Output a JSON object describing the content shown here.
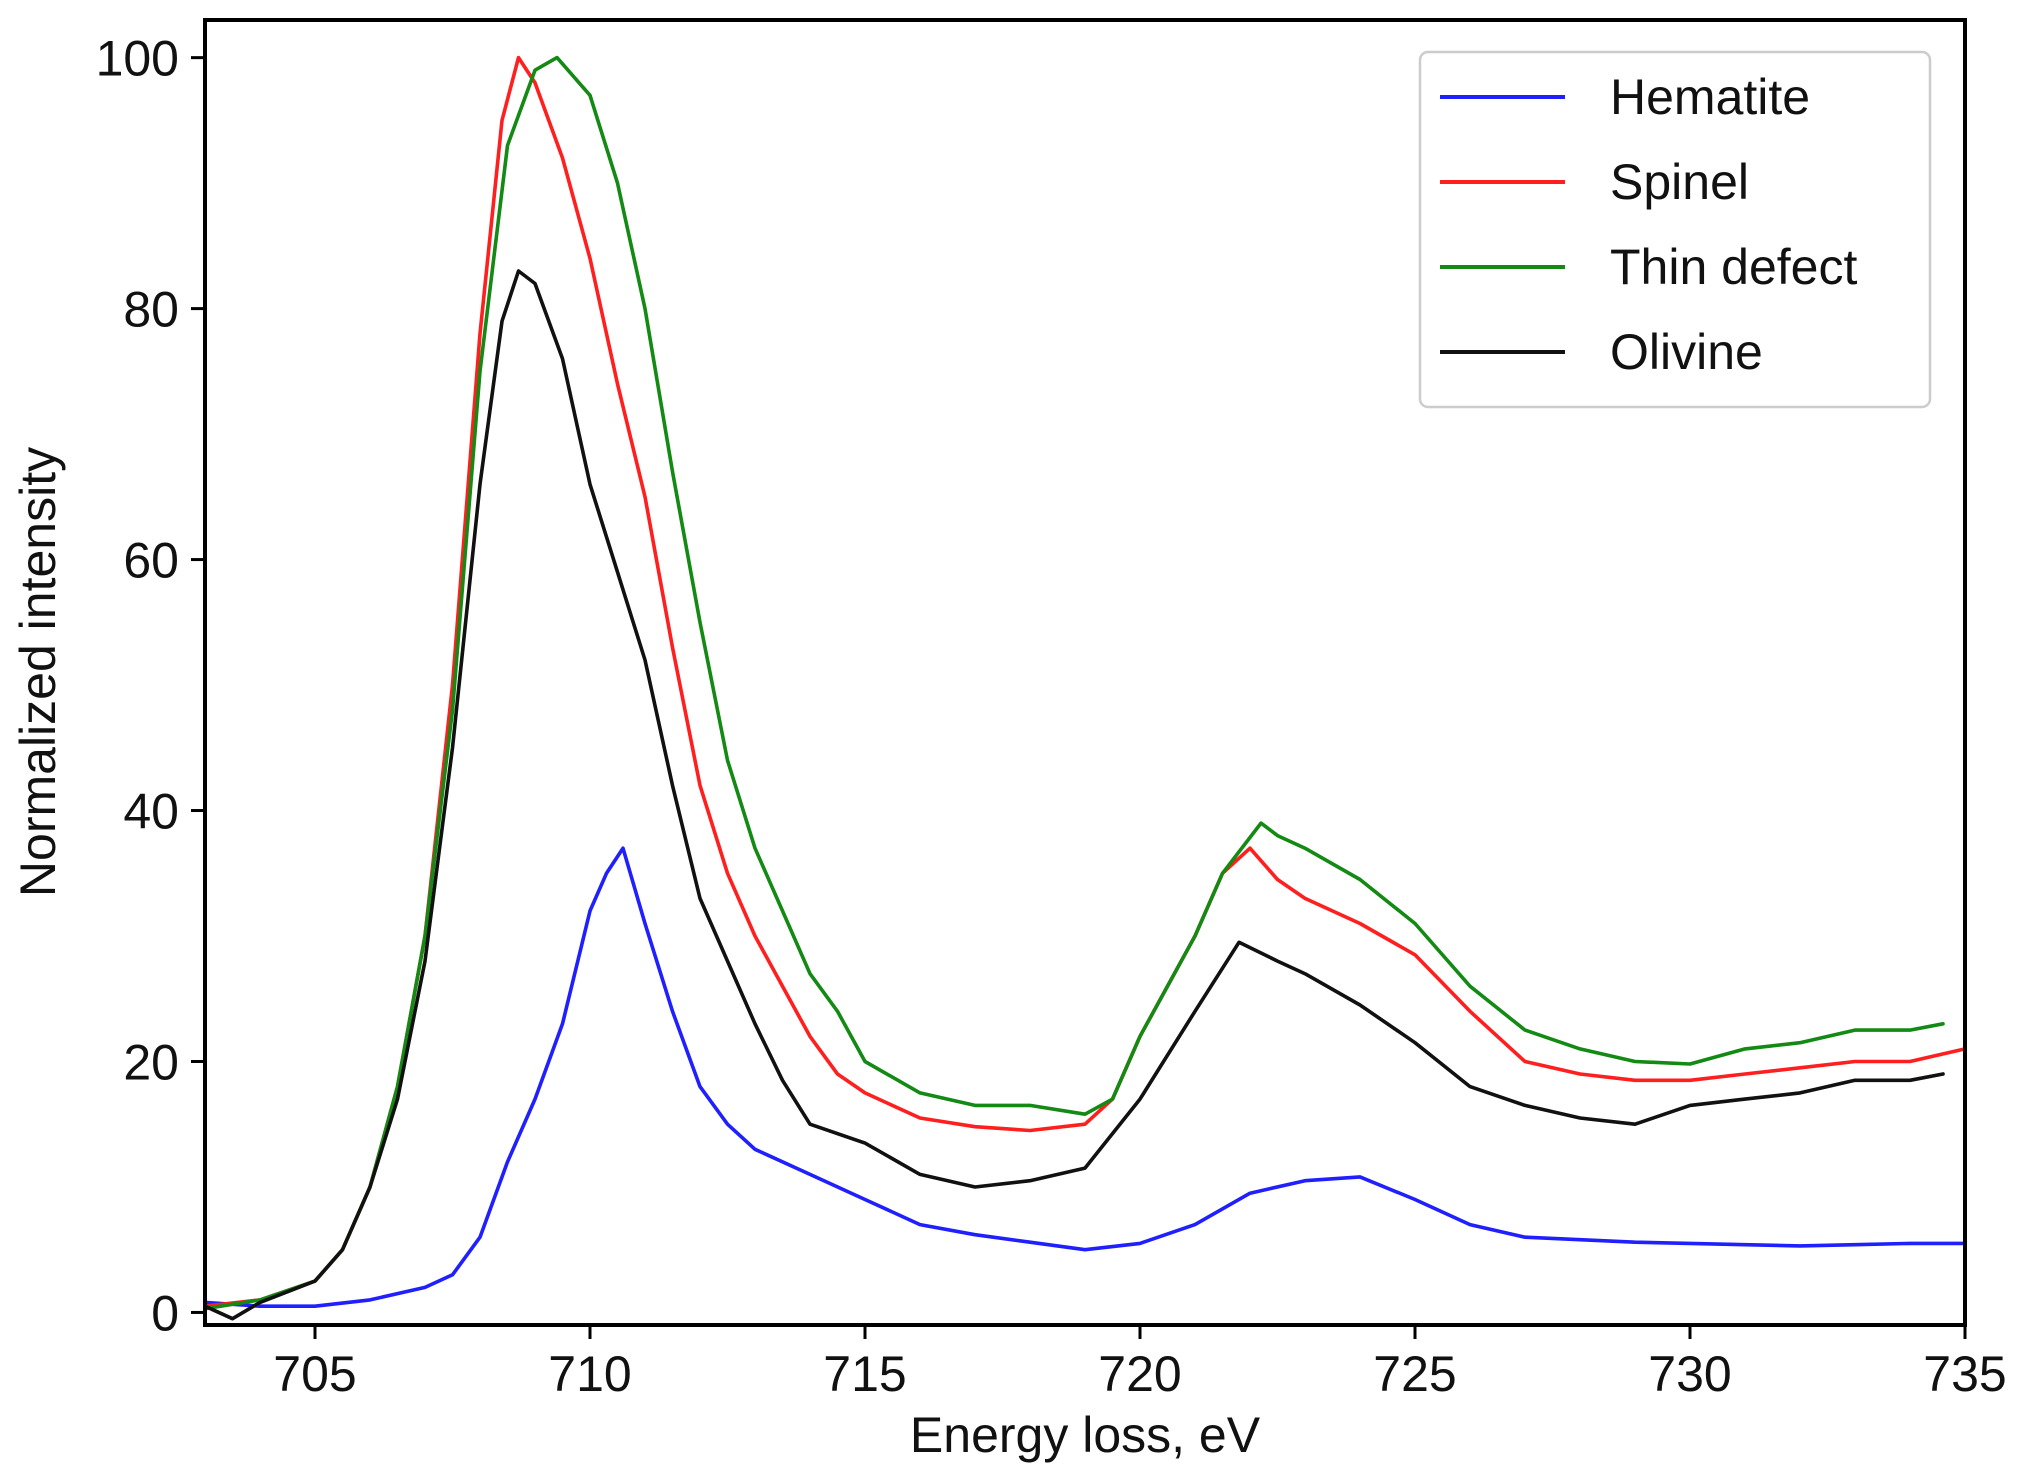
{
  "chart_data": {
    "type": "line",
    "title": "",
    "xlabel": "Energy loss, eV",
    "ylabel": "Normalized intensity",
    "xlim": [
      703,
      735
    ],
    "ylim": [
      -1,
      103
    ],
    "xticks": [
      705,
      710,
      715,
      720,
      725,
      730,
      735
    ],
    "yticks": [
      0,
      20,
      40,
      60,
      80,
      100
    ],
    "legend_position": "top-right",
    "grid": false,
    "series": [
      {
        "name": "Hematite",
        "color": "#1f1fff",
        "points": [
          [
            703.0,
            0.8
          ],
          [
            704.0,
            0.5
          ],
          [
            705.0,
            0.5
          ],
          [
            706.0,
            1.0
          ],
          [
            707.0,
            2.0
          ],
          [
            707.5,
            3.0
          ],
          [
            708.0,
            6.0
          ],
          [
            708.5,
            12.0
          ],
          [
            709.0,
            17.0
          ],
          [
            709.5,
            23.0
          ],
          [
            710.0,
            32.0
          ],
          [
            710.3,
            35.0
          ],
          [
            710.6,
            37.0
          ],
          [
            711.0,
            31.0
          ],
          [
            711.5,
            24.0
          ],
          [
            712.0,
            18.0
          ],
          [
            712.5,
            15.0
          ],
          [
            713.0,
            13.0
          ],
          [
            714.0,
            11.0
          ],
          [
            715.0,
            9.0
          ],
          [
            716.0,
            7.0
          ],
          [
            717.0,
            6.2
          ],
          [
            718.0,
            5.6
          ],
          [
            719.0,
            5.0
          ],
          [
            720.0,
            5.5
          ],
          [
            721.0,
            7.0
          ],
          [
            722.0,
            9.5
          ],
          [
            723.0,
            10.5
          ],
          [
            724.0,
            10.8
          ],
          [
            725.0,
            9.0
          ],
          [
            726.0,
            7.0
          ],
          [
            727.0,
            6.0
          ],
          [
            728.0,
            5.8
          ],
          [
            729.0,
            5.6
          ],
          [
            730.0,
            5.5
          ],
          [
            731.0,
            5.4
          ],
          [
            732.0,
            5.3
          ],
          [
            733.0,
            5.4
          ],
          [
            734.0,
            5.5
          ],
          [
            735.0,
            5.5
          ]
        ]
      },
      {
        "name": "Spinel",
        "color": "#ff1f1f",
        "points": [
          [
            703.0,
            0.5
          ],
          [
            704.0,
            1.0
          ],
          [
            705.0,
            2.5
          ],
          [
            705.5,
            5.0
          ],
          [
            706.0,
            10.0
          ],
          [
            706.5,
            18.0
          ],
          [
            707.0,
            30.0
          ],
          [
            707.5,
            50.0
          ],
          [
            708.0,
            78.0
          ],
          [
            708.4,
            95.0
          ],
          [
            708.7,
            100.0
          ],
          [
            709.0,
            98.0
          ],
          [
            709.5,
            92.0
          ],
          [
            710.0,
            84.0
          ],
          [
            710.5,
            74.0
          ],
          [
            711.0,
            65.0
          ],
          [
            711.5,
            53.0
          ],
          [
            712.0,
            42.0
          ],
          [
            712.5,
            35.0
          ],
          [
            713.0,
            30.0
          ],
          [
            713.5,
            26.0
          ],
          [
            714.0,
            22.0
          ],
          [
            714.5,
            19.0
          ],
          [
            715.0,
            17.5
          ],
          [
            716.0,
            15.5
          ],
          [
            717.0,
            14.8
          ],
          [
            718.0,
            14.5
          ],
          [
            719.0,
            15.0
          ],
          [
            719.5,
            17.0
          ],
          [
            720.0,
            22.0
          ],
          [
            721.0,
            30.0
          ],
          [
            721.5,
            35.0
          ],
          [
            722.0,
            37.0
          ],
          [
            722.5,
            34.5
          ],
          [
            723.0,
            33.0
          ],
          [
            724.0,
            31.0
          ],
          [
            725.0,
            28.5
          ],
          [
            726.0,
            24.0
          ],
          [
            727.0,
            20.0
          ],
          [
            728.0,
            19.0
          ],
          [
            729.0,
            18.5
          ],
          [
            730.0,
            18.5
          ],
          [
            731.0,
            19.0
          ],
          [
            732.0,
            19.5
          ],
          [
            733.0,
            20.0
          ],
          [
            734.0,
            20.0
          ],
          [
            735.0,
            21.0
          ]
        ]
      },
      {
        "name": "Thin defect",
        "color": "#138a13",
        "points": [
          [
            703.0,
            0.3
          ],
          [
            704.0,
            1.0
          ],
          [
            705.0,
            2.5
          ],
          [
            705.5,
            5.0
          ],
          [
            706.0,
            10.0
          ],
          [
            706.5,
            18.0
          ],
          [
            707.0,
            30.0
          ],
          [
            707.5,
            48.0
          ],
          [
            708.0,
            75.0
          ],
          [
            708.5,
            93.0
          ],
          [
            709.0,
            99.0
          ],
          [
            709.4,
            100.0
          ],
          [
            710.0,
            97.0
          ],
          [
            710.5,
            90.0
          ],
          [
            711.0,
            80.0
          ],
          [
            711.5,
            67.0
          ],
          [
            712.0,
            55.0
          ],
          [
            712.5,
            44.0
          ],
          [
            713.0,
            37.0
          ],
          [
            713.5,
            32.0
          ],
          [
            714.0,
            27.0
          ],
          [
            714.5,
            24.0
          ],
          [
            715.0,
            20.0
          ],
          [
            716.0,
            17.5
          ],
          [
            717.0,
            16.5
          ],
          [
            718.0,
            16.5
          ],
          [
            719.0,
            15.8
          ],
          [
            719.5,
            17.0
          ],
          [
            720.0,
            22.0
          ],
          [
            721.0,
            30.0
          ],
          [
            721.5,
            35.0
          ],
          [
            722.2,
            39.0
          ],
          [
            722.5,
            38.0
          ],
          [
            723.0,
            37.0
          ],
          [
            724.0,
            34.5
          ],
          [
            725.0,
            31.0
          ],
          [
            726.0,
            26.0
          ],
          [
            727.0,
            22.5
          ],
          [
            728.0,
            21.0
          ],
          [
            729.0,
            20.0
          ],
          [
            730.0,
            19.8
          ],
          [
            731.0,
            21.0
          ],
          [
            732.0,
            21.5
          ],
          [
            733.0,
            22.5
          ],
          [
            734.0,
            22.5
          ],
          [
            734.6,
            23.0
          ]
        ]
      },
      {
        "name": "Olivine",
        "color": "#111111",
        "points": [
          [
            703.0,
            0.5
          ],
          [
            703.5,
            -0.5
          ],
          [
            704.0,
            0.8
          ],
          [
            705.0,
            2.5
          ],
          [
            705.5,
            5.0
          ],
          [
            706.0,
            10.0
          ],
          [
            706.5,
            17.0
          ],
          [
            707.0,
            28.0
          ],
          [
            707.5,
            45.0
          ],
          [
            708.0,
            66.0
          ],
          [
            708.4,
            79.0
          ],
          [
            708.7,
            83.0
          ],
          [
            709.0,
            82.0
          ],
          [
            709.5,
            76.0
          ],
          [
            710.0,
            66.0
          ],
          [
            710.5,
            59.0
          ],
          [
            711.0,
            52.0
          ],
          [
            711.5,
            42.0
          ],
          [
            712.0,
            33.0
          ],
          [
            712.5,
            28.0
          ],
          [
            713.0,
            23.0
          ],
          [
            713.5,
            18.5
          ],
          [
            714.0,
            15.0
          ],
          [
            715.0,
            13.5
          ],
          [
            716.0,
            11.0
          ],
          [
            717.0,
            10.0
          ],
          [
            718.0,
            10.5
          ],
          [
            719.0,
            11.5
          ],
          [
            720.0,
            17.0
          ],
          [
            721.0,
            24.0
          ],
          [
            721.8,
            29.5
          ],
          [
            722.5,
            28.0
          ],
          [
            723.0,
            27.0
          ],
          [
            724.0,
            24.5
          ],
          [
            725.0,
            21.5
          ],
          [
            726.0,
            18.0
          ],
          [
            727.0,
            16.5
          ],
          [
            728.0,
            15.5
          ],
          [
            729.0,
            15.0
          ],
          [
            730.0,
            16.5
          ],
          [
            731.0,
            17.0
          ],
          [
            732.0,
            17.5
          ],
          [
            733.0,
            18.5
          ],
          [
            734.0,
            18.5
          ],
          [
            734.6,
            19.0
          ]
        ]
      }
    ]
  }
}
